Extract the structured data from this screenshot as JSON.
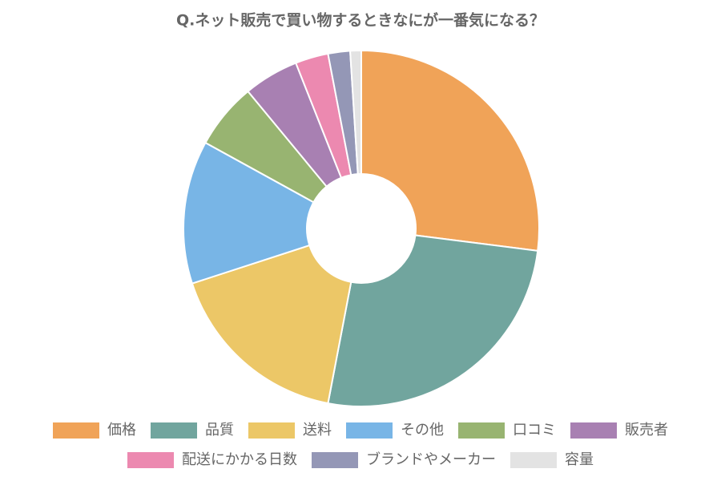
{
  "chart_data": {
    "type": "pie",
    "title": "Q.ネット販売で買い物するときなにが一番気になる？",
    "categories": [
      "価格",
      "品質",
      "送料",
      "その他",
      "口コミ",
      "販売者",
      "配送にかかる日数",
      "ブランドやメーカー",
      "容量"
    ],
    "values": [
      27,
      26,
      17,
      13,
      6,
      5,
      3,
      2,
      1
    ],
    "colors": [
      "#f0a358",
      "#71a59e",
      "#ecc767",
      "#78b5e6",
      "#98b471",
      "#a880b2",
      "#ec89b0",
      "#9497b6",
      "#e3e3e3"
    ],
    "legend": "bottom"
  }
}
